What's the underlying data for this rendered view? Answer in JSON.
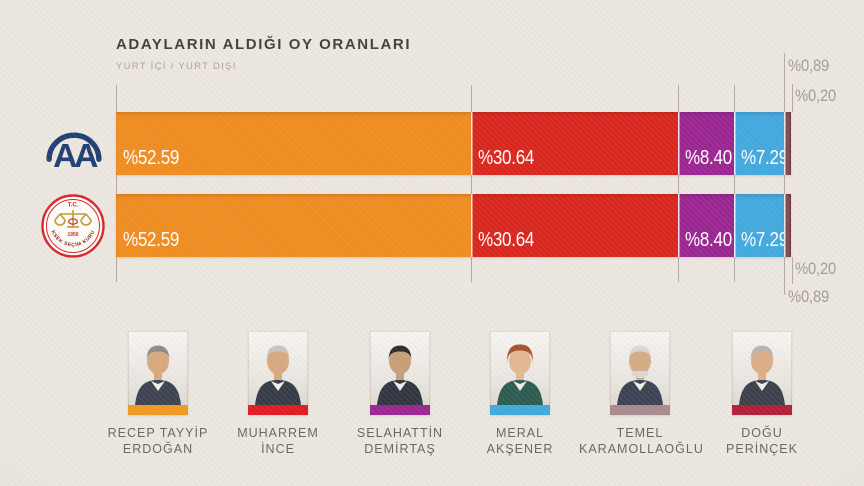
{
  "chart_data": {
    "type": "bar",
    "variant": "horizontal-stacked",
    "title": "ADAYLARIN ALDIĞI OY ORANLARI",
    "subtitle": "YURT İÇİ / YURT DIŞI",
    "xlim": [
      0,
      100
    ],
    "grid": "vertical-ticks-at-segment-boundaries",
    "categories": [
      "RECEP TAYYİP ERDOĞAN",
      "MUHARREM İNCE",
      "SELAHATTİN DEMİRTAŞ",
      "MERAL AKŞENER",
      "TEMEL KARAMOLLAOĞLU",
      "DOĞU PERİNÇEK"
    ],
    "bars": [
      {
        "name": "yurt-ici-bar",
        "segments": [
          {
            "candidate": "RECEP TAYYİP ERDOĞAN",
            "value": 52.59,
            "label": "%52.59",
            "color": "#f08c1f"
          },
          {
            "candidate": "MUHARREM İNCE",
            "value": 30.64,
            "label": "%30.64",
            "color": "#d9251d"
          },
          {
            "candidate": "SELAHATTİN DEMİRTAŞ",
            "value": 8.4,
            "label": "%8.40",
            "color": "#9a2492"
          },
          {
            "candidate": "MERAL AKŞENER",
            "value": 7.29,
            "label": "%7.29",
            "color": "#41a9df"
          },
          {
            "candidate": "TEMEL KARAMOLLAOĞLU",
            "value": 0.89,
            "label": "%0,89",
            "color": "#7c4a52"
          },
          {
            "candidate": "DOĞU PERİNÇEK",
            "value": 0.2,
            "label": "%0,20",
            "color": "#7a3440"
          }
        ]
      },
      {
        "name": "yurt-disi-bar",
        "segments": [
          {
            "candidate": "RECEP TAYYİP ERDOĞAN",
            "value": 52.59,
            "label": "%52.59",
            "color": "#f08c1f"
          },
          {
            "candidate": "MUHARREM İNCE",
            "value": 30.64,
            "label": "%30.64",
            "color": "#d9251d"
          },
          {
            "candidate": "SELAHATTİN DEMİRTAŞ",
            "value": 8.4,
            "label": "%8.40",
            "color": "#9a2492"
          },
          {
            "candidate": "MERAL AKŞENER",
            "value": 7.29,
            "label": "%7.29",
            "color": "#41a9df"
          },
          {
            "candidate": "TEMEL KARAMOLLAOĞLU",
            "value": 0.89,
            "label": "%0,89",
            "color": "#7c4a52"
          },
          {
            "candidate": "DOĞU PERİNÇEK",
            "value": 0.2,
            "label": "%0,20",
            "color": "#7a3440"
          }
        ]
      }
    ]
  },
  "logos": {
    "aa": {
      "text": "AA",
      "color": "#1e3d72"
    },
    "ysk": {
      "tc": "T.C.",
      "year": "1950",
      "ring_text": "YÜKSEK SEÇİM KURULU",
      "ring_color": "#d6232a",
      "emblem_color": "#bf9b30"
    }
  },
  "candidates": [
    {
      "name_line1": "RECEP TAYYİP",
      "name_line2": "ERDOĞAN",
      "color": "#f09a1f",
      "suit": "#3c4250",
      "skin": "#d8a87e",
      "hair": "#8f8a84"
    },
    {
      "name_line1": "MUHARREM",
      "name_line2": "İNCE",
      "color": "#e2191f",
      "suit": "#343b46",
      "skin": "#d8a87e",
      "hair": "#c9c4bd"
    },
    {
      "name_line1": "SELAHATTİN",
      "name_line2": "DEMİRTAŞ",
      "color": "#9a2492",
      "suit": "#2e3440",
      "skin": "#c79e78",
      "hair": "#2d2a28"
    },
    {
      "name_line1": "MERAL",
      "name_line2": "AKŞENER",
      "color": "#3fa9df",
      "suit": "#2a5b50",
      "skin": "#e3b792",
      "hair": "#a4502c"
    },
    {
      "name_line1": "TEMEL",
      "name_line2": "KARAMOLLAOĞLU",
      "color": "#a88a8e",
      "suit": "#3a4152",
      "skin": "#d6aa85",
      "hair": "#dcd8d2"
    },
    {
      "name_line1": "DOĞU",
      "name_line2": "PERİNÇEK",
      "color": "#b01d38",
      "suit": "#3b3f49",
      "skin": "#dcae87",
      "hair": "#b9b4ad"
    }
  ]
}
